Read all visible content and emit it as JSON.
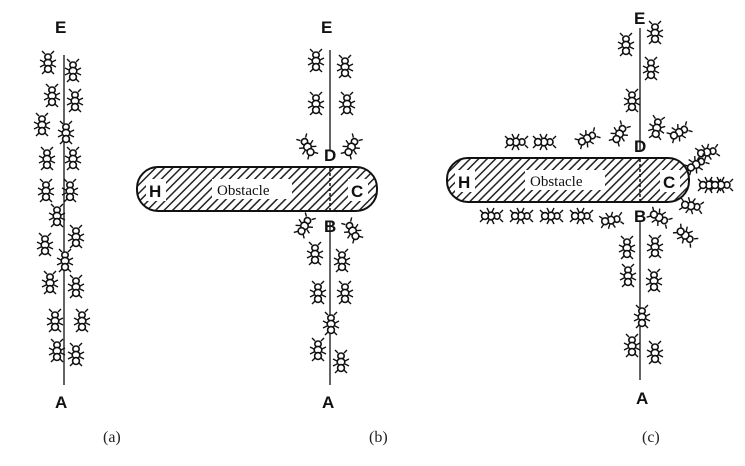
{
  "panels": [
    {
      "caption": "(a)",
      "top_label": "E",
      "bottom_label": "A"
    },
    {
      "caption": "(b)",
      "top_label": "E",
      "bottom_label": "A",
      "label_upper": "D",
      "label_lower": "B",
      "obstacle": {
        "text": "Obstacle",
        "left_label": "H",
        "right_label": "C"
      }
    },
    {
      "caption": "(c)",
      "top_label": "E",
      "bottom_label": "A",
      "label_upper": "D",
      "label_lower": "B",
      "obstacle": {
        "text": "Obstacle",
        "left_label": "H",
        "right_label": "C"
      }
    }
  ],
  "colors": {
    "ink": "#111111",
    "hatch": "#333333"
  },
  "icon": "ant-icon"
}
